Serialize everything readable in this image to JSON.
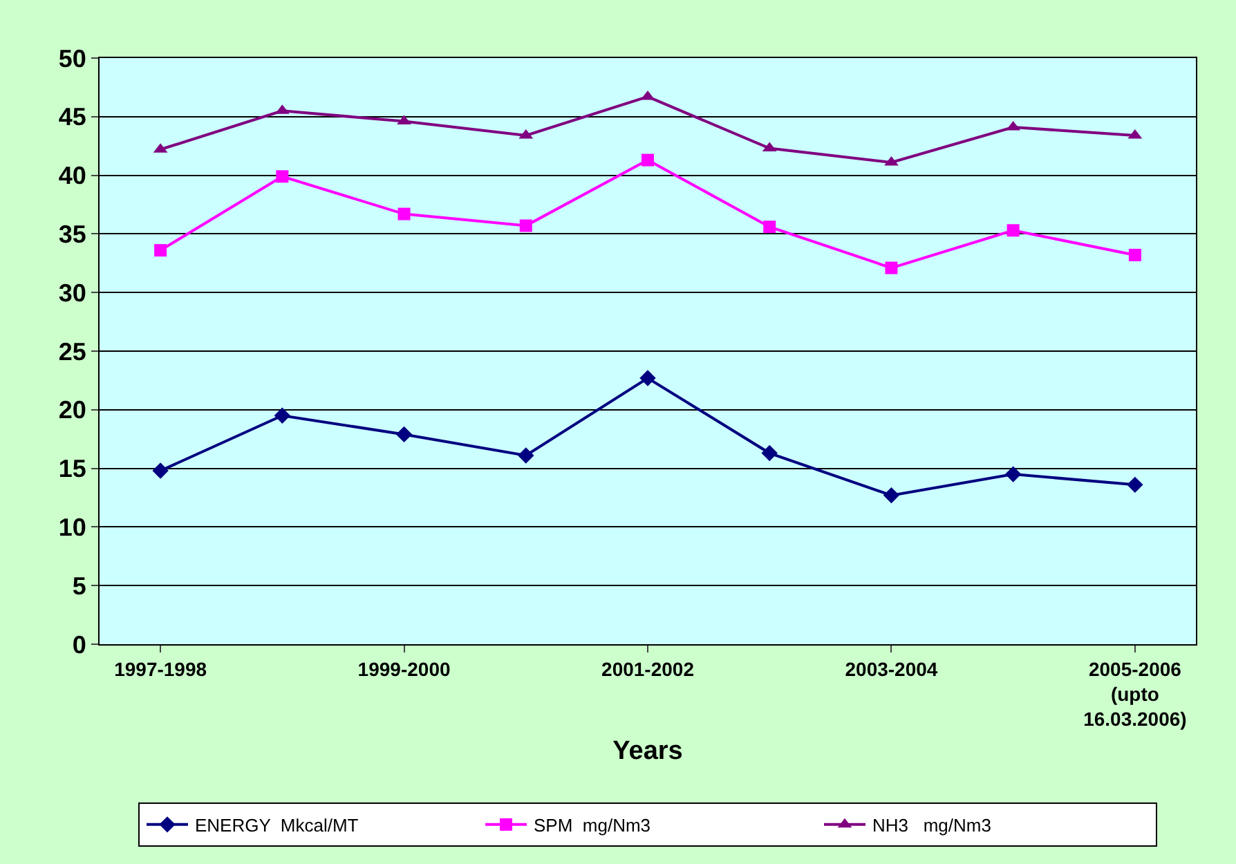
{
  "chart_data": {
    "type": "line",
    "xlabel": "Years",
    "categories": [
      "1997-1998",
      null,
      "1999-2000",
      null,
      "2001-2002",
      null,
      "2003-2004",
      null,
      "2005-2006\n(upto\n16.03.2006)"
    ],
    "series": [
      {
        "name": "ENERGY  Mkcal/MT",
        "color": "#000080",
        "marker": "diamond",
        "values": [
          14.8,
          19.5,
          17.9,
          16.1,
          22.7,
          16.3,
          12.7,
          14.5,
          13.6
        ]
      },
      {
        "name": "SPM  mg/Nm3",
        "color": "#ff00ff",
        "marker": "square",
        "values": [
          33.6,
          39.9,
          36.7,
          35.7,
          41.3,
          35.6,
          32.1,
          35.3,
          33.2
        ]
      },
      {
        "name": "NH3   mg/Nm3",
        "color": "#800080",
        "marker": "triangle",
        "values": [
          42.2,
          45.5,
          44.6,
          43.4,
          46.7,
          42.3,
          41.1,
          44.1,
          43.4
        ]
      }
    ],
    "ylim": [
      0,
      50
    ],
    "yticks": [
      0,
      5,
      10,
      15,
      20,
      25,
      30,
      35,
      40,
      45,
      50
    ],
    "grid": "y",
    "legend": "bottom"
  }
}
